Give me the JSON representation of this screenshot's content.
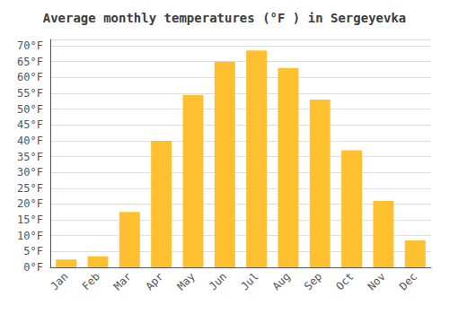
{
  "chart_data": {
    "type": "bar",
    "title": "Average monthly temperatures (°F ) in Sergeyevka",
    "categories": [
      "Jan",
      "Feb",
      "Mar",
      "Apr",
      "May",
      "Jun",
      "Jul",
      "Aug",
      "Sep",
      "Oct",
      "Nov",
      "Dec"
    ],
    "values": [
      2.5,
      3.5,
      17.5,
      40.0,
      54.5,
      65.0,
      68.5,
      63.0,
      53.0,
      37.0,
      21.0,
      8.5
    ],
    "color": "#FFC030",
    "ylim": [
      0,
      72
    ],
    "yticks": [
      {
        "value": 0,
        "label": "0°F"
      },
      {
        "value": 5,
        "label": "5°F"
      },
      {
        "value": 10,
        "label": "10°F"
      },
      {
        "value": 15,
        "label": "15°F"
      },
      {
        "value": 20,
        "label": "20°F"
      },
      {
        "value": 25,
        "label": "25°F"
      },
      {
        "value": 30,
        "label": "30°F"
      },
      {
        "value": 35,
        "label": "35°F"
      },
      {
        "value": 40,
        "label": "40°F"
      },
      {
        "value": 45,
        "label": "45°F"
      },
      {
        "value": 50,
        "label": "50°F"
      },
      {
        "value": 55,
        "label": "55°F"
      },
      {
        "value": 60,
        "label": "60°F"
      },
      {
        "value": 65,
        "label": "65°F"
      },
      {
        "value": 70,
        "label": "70°F"
      }
    ],
    "grid": true
  }
}
